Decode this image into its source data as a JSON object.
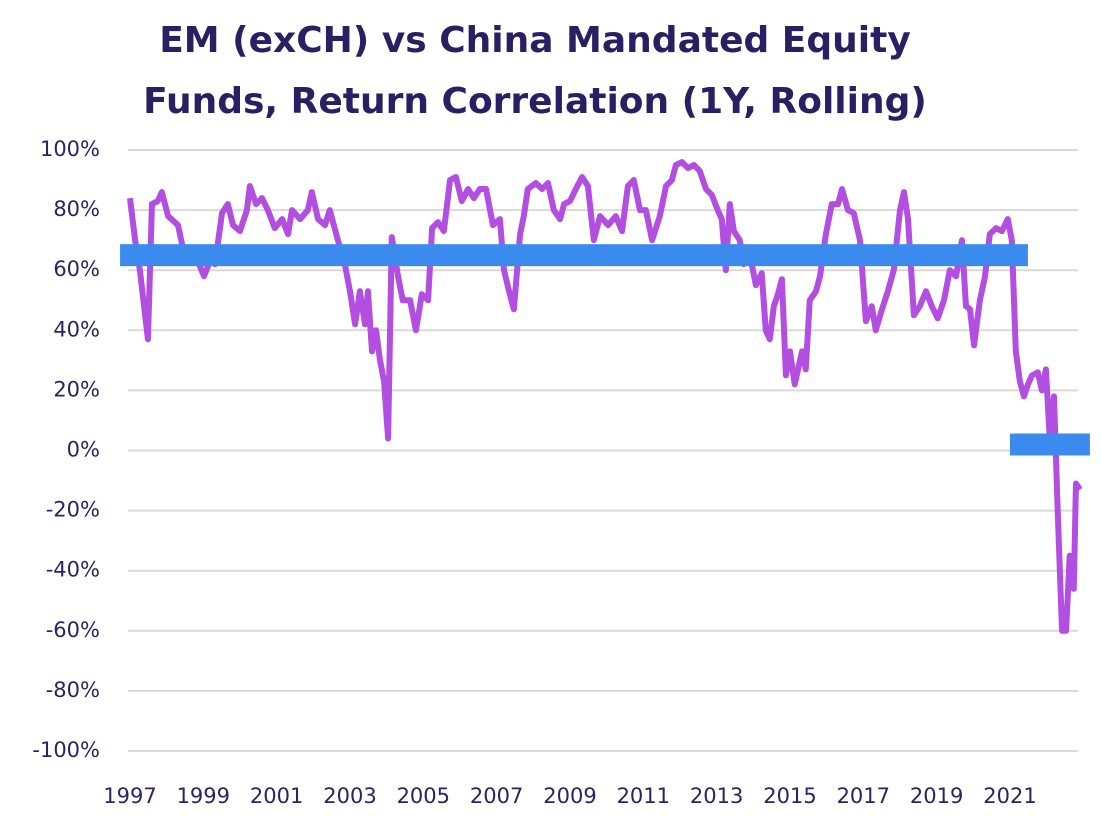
{
  "chart_data": {
    "type": "line",
    "title": [
      "EM (exCH) vs China Mandated Equity",
      "Funds, Return Correlation (1Y, Rolling)"
    ],
    "x": [
      1997.0,
      1997.14,
      1997.27,
      1997.49,
      1997.6,
      1997.76,
      1997.87,
      1998.04,
      1998.31,
      1998.45,
      1998.64,
      1998.85,
      1999.02,
      1999.18,
      1999.32,
      1999.51,
      1999.67,
      1999.81,
      2000.0,
      2000.19,
      2000.27,
      2000.44,
      2000.6,
      2000.76,
      2000.95,
      2001.15,
      2001.31,
      2001.42,
      2001.64,
      2001.85,
      2001.96,
      2002.13,
      2002.32,
      2002.45,
      2002.67,
      2002.86,
      2003.0,
      2003.14,
      2003.27,
      2003.41,
      2003.49,
      2003.6,
      2003.71,
      2003.82,
      2003.93,
      2004.04,
      2004.14,
      2004.31,
      2004.44,
      2004.64,
      2004.8,
      2004.96,
      2005.13,
      2005.24,
      2005.4,
      2005.56,
      2005.73,
      2005.89,
      2006.05,
      2006.22,
      2006.38,
      2006.54,
      2006.71,
      2006.9,
      2007.09,
      2007.2,
      2007.36,
      2007.47,
      2007.64,
      2007.74,
      2007.85,
      2008.07,
      2008.24,
      2008.4,
      2008.56,
      2008.73,
      2008.84,
      2009.0,
      2009.16,
      2009.33,
      2009.49,
      2009.65,
      2009.82,
      2010.04,
      2010.25,
      2010.42,
      2010.58,
      2010.74,
      2010.91,
      2011.07,
      2011.24,
      2011.45,
      2011.62,
      2011.78,
      2011.89,
      2012.05,
      2012.22,
      2012.38,
      2012.54,
      2012.71,
      2012.87,
      2013.03,
      2013.14,
      2013.25,
      2013.36,
      2013.47,
      2013.63,
      2013.74,
      2013.91,
      2014.07,
      2014.23,
      2014.34,
      2014.45,
      2014.56,
      2014.67,
      2014.78,
      2014.89,
      2015.0,
      2015.13,
      2015.33,
      2015.43,
      2015.54,
      2015.71,
      2015.82,
      2015.98,
      2016.14,
      2016.31,
      2016.42,
      2016.58,
      2016.74,
      2016.91,
      2017.07,
      2017.23,
      2017.34,
      2017.51,
      2017.67,
      2017.83,
      2018.0,
      2018.11,
      2018.22,
      2018.38,
      2018.54,
      2018.71,
      2018.87,
      2019.03,
      2019.2,
      2019.36,
      2019.53,
      2019.69,
      2019.8,
      2019.91,
      2020.02,
      2020.18,
      2020.32,
      2020.45,
      2020.62,
      2020.78,
      2020.94,
      2021.05,
      2021.16,
      2021.27,
      2021.38,
      2021.49,
      2021.6,
      2021.76,
      2021.87,
      2021.98,
      2022.09,
      2022.2,
      2022.31,
      2022.42,
      2022.53,
      2022.63,
      2022.74,
      2022.8,
      2022.91
    ],
    "values": [
      84,
      70,
      60,
      37,
      82,
      83,
      86,
      78,
      75,
      67,
      67,
      63,
      58,
      63,
      62,
      79,
      82,
      75,
      73,
      80,
      88,
      82,
      84,
      80,
      74,
      77,
      72,
      80,
      77,
      80,
      86,
      77,
      75,
      80,
      70,
      62,
      53,
      42,
      53,
      42,
      53,
      33,
      40,
      30,
      23,
      4,
      71,
      58,
      50,
      50,
      40,
      52,
      50,
      74,
      76,
      73,
      90,
      91,
      83,
      87,
      84,
      87,
      87,
      75,
      77,
      60,
      52,
      47,
      72,
      78,
      87,
      89,
      87,
      89,
      80,
      77,
      82,
      83,
      87,
      91,
      88,
      70,
      78,
      75,
      78,
      73,
      88,
      90,
      80,
      80,
      70,
      78,
      88,
      90,
      95,
      96,
      94,
      95,
      93,
      87,
      85,
      80,
      77,
      60,
      82,
      73,
      70,
      62,
      65,
      55,
      59,
      40,
      37,
      48,
      52,
      57,
      25,
      33,
      22,
      33,
      27,
      50,
      53,
      58,
      72,
      82,
      82,
      87,
      80,
      79,
      70,
      43,
      48,
      40,
      47,
      53,
      60,
      80,
      86,
      77,
      45,
      48,
      53,
      48,
      44,
      50,
      60,
      58,
      70,
      48,
      47,
      35,
      50,
      58,
      72,
      74,
      73,
      77,
      70,
      33,
      23,
      18,
      22,
      25,
      26,
      20,
      27,
      3,
      18,
      -23,
      -60,
      -60,
      -35,
      -46,
      -11,
      -13
    ],
    "color": "#b24ee0",
    "bands": [
      {
        "from": 1996.73,
        "to": 2021.49,
        "value": 65
      },
      {
        "from": 2021.0,
        "to": 2023.18,
        "value": 2
      }
    ],
    "band_color": "#3b8bef",
    "xlim": [
      1996.9,
      2022.91
    ],
    "xticks": [
      1997,
      1999,
      2001,
      2003,
      2005,
      2007,
      2009,
      2011,
      2013,
      2015,
      2017,
      2019,
      2021
    ],
    "ylim": [
      -100,
      100
    ],
    "yticks": [
      {
        "value": -100,
        "label": "-100%"
      },
      {
        "value": -80,
        "label": "-80%"
      },
      {
        "value": -60,
        "label": "-60%"
      },
      {
        "value": -40,
        "label": "-40%"
      },
      {
        "value": -20,
        "label": "-20%"
      },
      {
        "value": 0,
        "label": "0%"
      },
      {
        "value": 20,
        "label": "20%"
      },
      {
        "value": 40,
        "label": "40%"
      },
      {
        "value": 60,
        "label": "60%"
      },
      {
        "value": 80,
        "label": "80%"
      },
      {
        "value": 100,
        "label": "100%"
      }
    ],
    "grid": true
  }
}
